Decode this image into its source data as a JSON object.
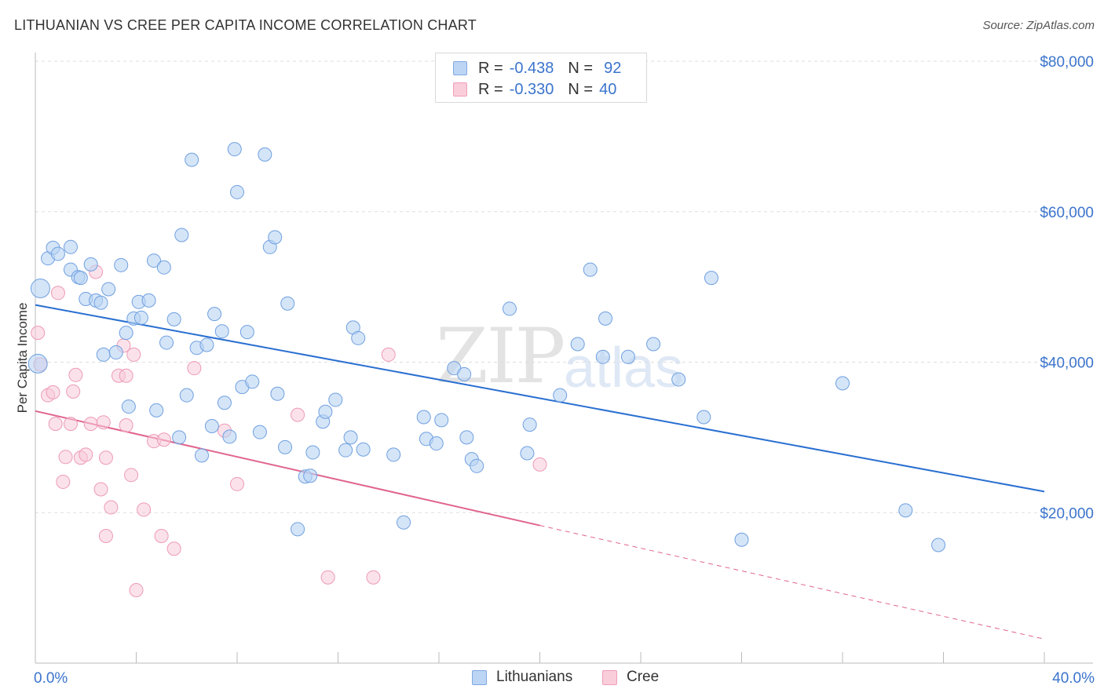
{
  "title": "LITHUANIAN VS CREE PER CAPITA INCOME CORRELATION CHART",
  "source": "Source: ZipAtlas.com",
  "watermark": {
    "zip": "ZIP",
    "atlas": "atlas"
  },
  "legend": {
    "rows": [
      {
        "r_label": "R =",
        "r_value": "-0.438",
        "n_label": "N =",
        "n_value": "92",
        "color": "#a9c8ef"
      },
      {
        "r_label": "R =",
        "r_value": "-0.330",
        "n_label": "N =",
        "n_value": "40",
        "color": "#f5b8cb"
      }
    ]
  },
  "bottom_legend": {
    "lithuanians": "Lithuanians",
    "cree": "Cree"
  },
  "chart_data": {
    "type": "scatter",
    "title": "LITHUANIAN VS CREE PER CAPITA INCOME CORRELATION CHART",
    "xlabel": "",
    "ylabel": "Per Capita Income",
    "xlim": [
      0,
      40
    ],
    "ylim": [
      0,
      80000
    ],
    "x_tick_labels": [
      "0.0%",
      "40.0%"
    ],
    "y_tick_labels": [
      "$20,000",
      "$40,000",
      "$60,000",
      "$80,000"
    ],
    "y_ticks": [
      20000,
      40000,
      60000,
      80000
    ],
    "grid": true,
    "colors": {
      "lithuanians": "#6fa0e0",
      "lithuanians_fill": "#b9d3f3",
      "lithuanians_line": "#2a6fd1",
      "cree": "#ee9ab5",
      "cree_fill": "#f8cbd9",
      "cree_line": "#e0648e"
    },
    "series": [
      {
        "name": "Lithuanians",
        "trend": {
          "x": [
            0,
            40
          ],
          "y": [
            47600,
            22800
          ]
        },
        "points": [
          [
            0.1,
            39800
          ],
          [
            0.2,
            49800
          ],
          [
            0.5,
            53800
          ],
          [
            0.7,
            55200
          ],
          [
            0.9,
            54400
          ],
          [
            1.4,
            55300
          ],
          [
            1.4,
            52300
          ],
          [
            1.7,
            51300
          ],
          [
            1.8,
            51200
          ],
          [
            2.0,
            48400
          ],
          [
            2.2,
            53000
          ],
          [
            2.4,
            48200
          ],
          [
            2.6,
            47900
          ],
          [
            2.7,
            41000
          ],
          [
            2.9,
            49700
          ],
          [
            3.2,
            41300
          ],
          [
            3.4,
            52900
          ],
          [
            3.6,
            43900
          ],
          [
            3.7,
            34100
          ],
          [
            3.9,
            45800
          ],
          [
            4.1,
            48000
          ],
          [
            4.2,
            45900
          ],
          [
            4.5,
            48200
          ],
          [
            4.7,
            53500
          ],
          [
            4.8,
            33600
          ],
          [
            5.1,
            52600
          ],
          [
            5.2,
            42600
          ],
          [
            5.5,
            45700
          ],
          [
            5.7,
            30000
          ],
          [
            5.8,
            56900
          ],
          [
            6.0,
            35600
          ],
          [
            6.2,
            66900
          ],
          [
            6.4,
            41900
          ],
          [
            6.6,
            27600
          ],
          [
            6.8,
            42300
          ],
          [
            7.0,
            31500
          ],
          [
            7.1,
            46400
          ],
          [
            7.4,
            44100
          ],
          [
            7.5,
            34600
          ],
          [
            7.7,
            30100
          ],
          [
            7.9,
            68300
          ],
          [
            8.0,
            62600
          ],
          [
            8.2,
            36700
          ],
          [
            8.4,
            44000
          ],
          [
            8.6,
            37400
          ],
          [
            8.9,
            30700
          ],
          [
            9.1,
            67600
          ],
          [
            9.3,
            55300
          ],
          [
            9.5,
            56600
          ],
          [
            9.6,
            35800
          ],
          [
            9.9,
            28700
          ],
          [
            10.0,
            47800
          ],
          [
            10.4,
            17800
          ],
          [
            10.7,
            24800
          ],
          [
            10.9,
            24900
          ],
          [
            11.0,
            28000
          ],
          [
            11.4,
            32100
          ],
          [
            11.5,
            33400
          ],
          [
            11.9,
            35000
          ],
          [
            12.3,
            28300
          ],
          [
            12.5,
            30000
          ],
          [
            12.6,
            44600
          ],
          [
            12.8,
            43200
          ],
          [
            13.0,
            28400
          ],
          [
            14.2,
            27700
          ],
          [
            14.6,
            18700
          ],
          [
            15.4,
            32700
          ],
          [
            15.5,
            29800
          ],
          [
            15.9,
            29200
          ],
          [
            16.1,
            32300
          ],
          [
            16.6,
            39200
          ],
          [
            17.0,
            38400
          ],
          [
            17.1,
            30000
          ],
          [
            17.3,
            27100
          ],
          [
            17.5,
            26200
          ],
          [
            18.8,
            47100
          ],
          [
            19.5,
            27900
          ],
          [
            19.6,
            31700
          ],
          [
            20.8,
            35600
          ],
          [
            21.5,
            42400
          ],
          [
            22.0,
            52300
          ],
          [
            22.5,
            40700
          ],
          [
            22.6,
            45800
          ],
          [
            23.5,
            40700
          ],
          [
            24.5,
            42400
          ],
          [
            25.5,
            37700
          ],
          [
            26.5,
            32700
          ],
          [
            26.8,
            51200
          ],
          [
            28.0,
            16400
          ],
          [
            32.0,
            37200
          ],
          [
            34.5,
            20300
          ],
          [
            35.8,
            15700
          ]
        ]
      },
      {
        "name": "Cree",
        "trend": {
          "x": [
            0,
            20
          ],
          "y": [
            33500,
            18300
          ]
        },
        "trend_dashed": {
          "x": [
            20,
            40
          ],
          "y": [
            18300,
            3200
          ]
        },
        "points": [
          [
            0.1,
            43900
          ],
          [
            0.2,
            39700
          ],
          [
            0.5,
            35600
          ],
          [
            0.7,
            36000
          ],
          [
            0.8,
            31800
          ],
          [
            0.9,
            49200
          ],
          [
            1.1,
            24100
          ],
          [
            1.2,
            27400
          ],
          [
            1.4,
            31800
          ],
          [
            1.5,
            36100
          ],
          [
            1.6,
            38300
          ],
          [
            1.8,
            27300
          ],
          [
            2.0,
            27700
          ],
          [
            2.2,
            31800
          ],
          [
            2.4,
            52000
          ],
          [
            2.6,
            23100
          ],
          [
            2.7,
            32000
          ],
          [
            2.8,
            27300
          ],
          [
            2.8,
            16900
          ],
          [
            3.0,
            20700
          ],
          [
            3.3,
            38200
          ],
          [
            3.5,
            42200
          ],
          [
            3.6,
            31600
          ],
          [
            3.6,
            38200
          ],
          [
            3.8,
            25000
          ],
          [
            3.9,
            41000
          ],
          [
            4.0,
            9700
          ],
          [
            4.3,
            20400
          ],
          [
            4.7,
            29500
          ],
          [
            5.0,
            16900
          ],
          [
            5.1,
            29700
          ],
          [
            5.5,
            15200
          ],
          [
            6.3,
            39200
          ],
          [
            7.5,
            30900
          ],
          [
            8.0,
            23800
          ],
          [
            10.4,
            33000
          ],
          [
            11.6,
            11400
          ],
          [
            13.4,
            11400
          ],
          [
            14.0,
            41000
          ],
          [
            20.0,
            26400
          ]
        ]
      }
    ]
  }
}
